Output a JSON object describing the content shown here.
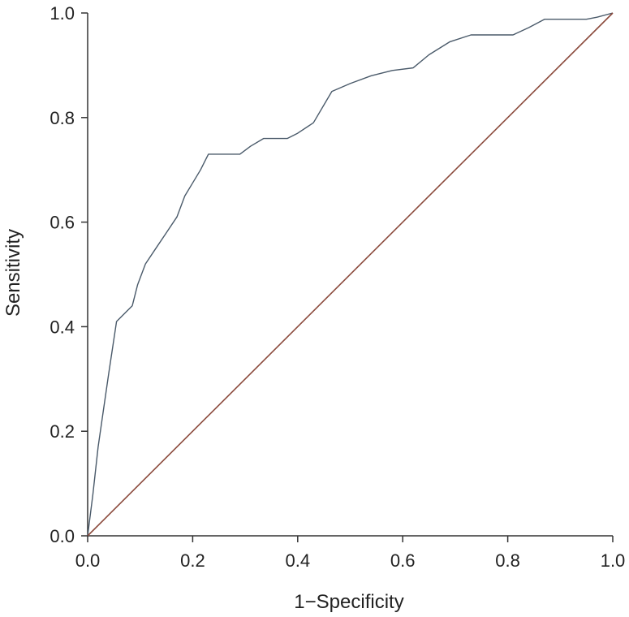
{
  "chart_data": {
    "type": "line",
    "title": "",
    "xlabel": "1−Specificity",
    "ylabel": "Sensitivity",
    "xlim": [
      0,
      1
    ],
    "ylim": [
      0,
      1
    ],
    "xticks": [
      0.0,
      0.2,
      0.4,
      0.6,
      0.8,
      1.0
    ],
    "yticks": [
      0.0,
      0.2,
      0.4,
      0.6,
      0.8,
      1.0
    ],
    "xtick_labels": [
      "0.0",
      "0.2",
      "0.4",
      "0.6",
      "0.8",
      "1.0"
    ],
    "ytick_labels": [
      "0.0",
      "0.2",
      "0.4",
      "0.6",
      "0.8",
      "1.0"
    ],
    "grid": false,
    "legend": "none",
    "series": [
      {
        "color": "#4a5a6a",
        "x": [
          0.0,
          0.01,
          0.02,
          0.03,
          0.04,
          0.055,
          0.065,
          0.085,
          0.095,
          0.11,
          0.13,
          0.15,
          0.17,
          0.185,
          0.2,
          0.215,
          0.23,
          0.26,
          0.29,
          0.31,
          0.335,
          0.36,
          0.38,
          0.4,
          0.43,
          0.465,
          0.5,
          0.54,
          0.58,
          0.62,
          0.65,
          0.69,
          0.73,
          0.78,
          0.81,
          0.84,
          0.87,
          0.9,
          0.95,
          0.97,
          1.0
        ],
        "y": [
          0.0,
          0.08,
          0.17,
          0.24,
          0.31,
          0.41,
          0.42,
          0.44,
          0.48,
          0.52,
          0.55,
          0.58,
          0.61,
          0.65,
          0.675,
          0.7,
          0.73,
          0.73,
          0.73,
          0.745,
          0.76,
          0.76,
          0.76,
          0.77,
          0.79,
          0.85,
          0.865,
          0.88,
          0.89,
          0.895,
          0.92,
          0.945,
          0.958,
          0.958,
          0.958,
          0.972,
          0.988,
          0.988,
          0.988,
          0.992,
          1.0
        ]
      },
      {
        "color": "#8b4a3c",
        "x": [
          0.0,
          1.0
        ],
        "y": [
          0.0,
          1.0
        ]
      }
    ]
  }
}
